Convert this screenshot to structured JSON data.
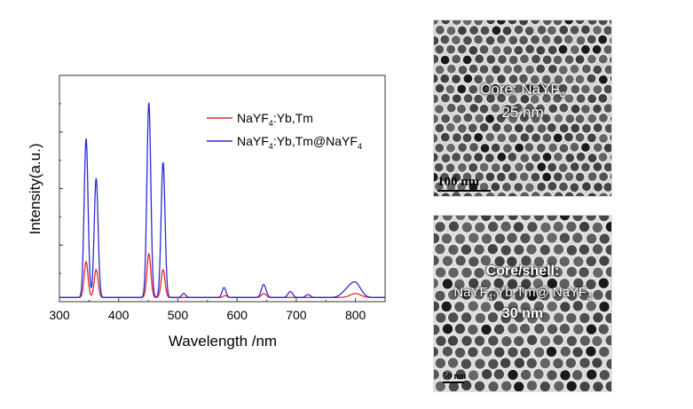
{
  "chart_data": {
    "type": "line",
    "title": "",
    "xlabel": "Wavelength /nm",
    "ylabel": "Intensity(a.u.)",
    "xlim": [
      300,
      850
    ],
    "ylim": [
      0,
      100
    ],
    "xticks": [
      300,
      400,
      500,
      600,
      700,
      800
    ],
    "grid": false,
    "legend_position": "top-right",
    "series": [
      {
        "name": "NaYF4:Yb,Tm",
        "color": "#e8262b",
        "peaks": [
          [
            345,
            18
          ],
          [
            362,
            14
          ],
          [
            451,
            22
          ],
          [
            475,
            14
          ],
          [
            580,
            1
          ],
          [
            645,
            2
          ],
          [
            800,
            2
          ]
        ]
      },
      {
        "name": "NaYF4:Yb,Tm@NaYF4",
        "color": "#2b2bd4",
        "peaks": [
          [
            345,
            80
          ],
          [
            362,
            60
          ],
          [
            451,
            98
          ],
          [
            475,
            68
          ],
          [
            510,
            2
          ],
          [
            578,
            5
          ],
          [
            645,
            6.5
          ],
          [
            690,
            3
          ],
          [
            720,
            1.5
          ],
          [
            785,
            3
          ],
          [
            800,
            7
          ]
        ]
      }
    ]
  },
  "tem_top": {
    "label_line1": "Core: NaYF",
    "label_line1_sub": "4",
    "label_line2": "25 nm",
    "scalebar": "100 nm"
  },
  "tem_bottom": {
    "label_line1": "Core/shell:",
    "label_line2_a": "NaYF",
    "label_line2_sub1": "4",
    "label_line2_b": ":Yb,Tm@ NaYF",
    "label_line2_sub2": "4",
    "label_line3": "30 nm",
    "scalebar": "50 nm"
  }
}
